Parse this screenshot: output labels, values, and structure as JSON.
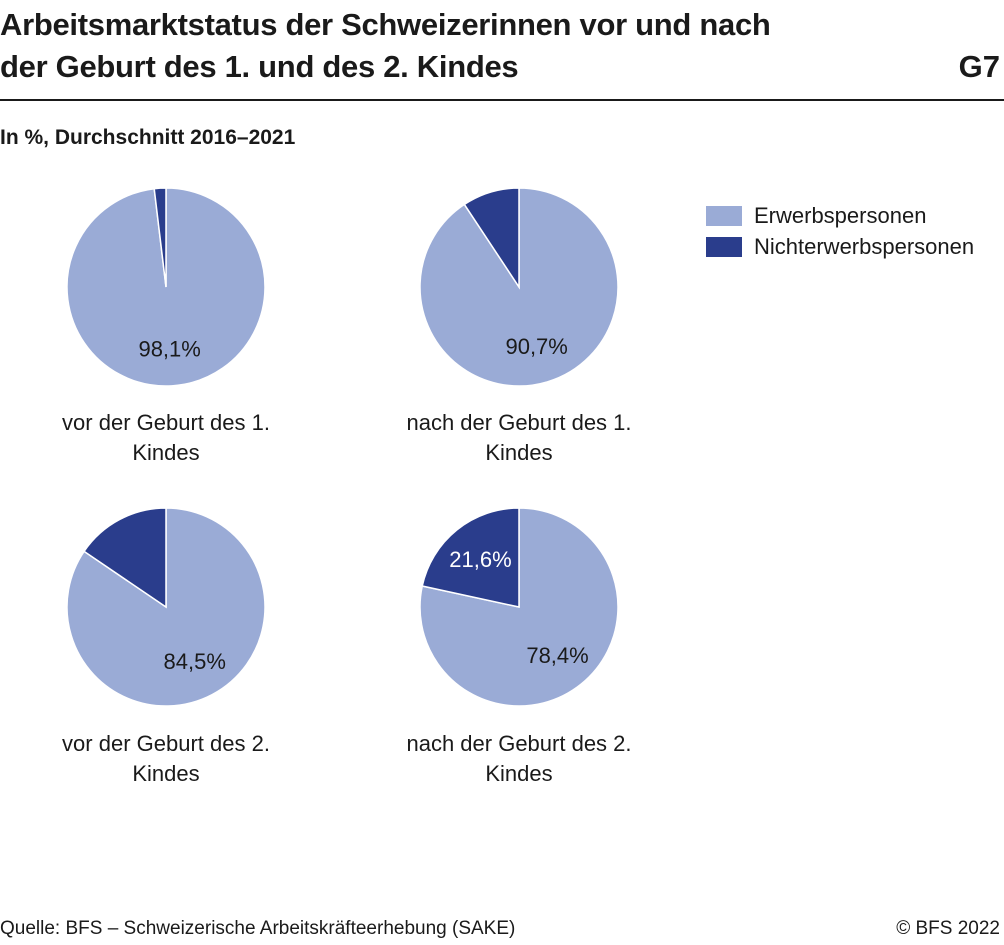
{
  "header": {
    "title_line1": "Arbeitsmarktstatus der Schweizerinnen vor und nach",
    "title_line2": "der Geburt des 1. und des 2. Kindes",
    "code": "G7",
    "subtitle": "In %, Durchschnitt 2016–2021"
  },
  "legend": [
    {
      "label": "Erwerbspersonen",
      "color": "#9aabd6"
    },
    {
      "label": "Nichterwerbspersonen",
      "color": "#2a3d8c"
    }
  ],
  "chart_data": [
    {
      "type": "pie",
      "caption_lines": [
        "vor der Geburt des 1.",
        "Kindes"
      ],
      "slices": [
        {
          "series": "Erwerbspersonen",
          "value": 98.1,
          "label": "98,1%"
        },
        {
          "series": "Nichterwerbspersonen",
          "value": 1.9,
          "label": ""
        }
      ]
    },
    {
      "type": "pie",
      "caption_lines": [
        "nach der Geburt des 1.",
        "Kindes"
      ],
      "slices": [
        {
          "series": "Erwerbspersonen",
          "value": 90.7,
          "label": "90,7%"
        },
        {
          "series": "Nichterwerbspersonen",
          "value": 9.3,
          "label": ""
        }
      ]
    },
    {
      "type": "pie",
      "caption_lines": [
        "vor der Geburt des 2.",
        "Kindes"
      ],
      "slices": [
        {
          "series": "Erwerbspersonen",
          "value": 84.5,
          "label": "84,5%"
        },
        {
          "series": "Nichterwerbspersonen",
          "value": 15.5,
          "label": ""
        }
      ]
    },
    {
      "type": "pie",
      "caption_lines": [
        "nach der Geburt des 2.",
        "Kindes"
      ],
      "slices": [
        {
          "series": "Erwerbspersonen",
          "value": 78.4,
          "label": "78,4%"
        },
        {
          "series": "Nichterwerbspersonen",
          "value": 21.6,
          "label": "21,6%"
        }
      ]
    }
  ],
  "footer": {
    "source": "Quelle: BFS – Schweizerische Arbeitskräfteerhebung (SAKE)",
    "copyright": "© BFS 2022"
  }
}
